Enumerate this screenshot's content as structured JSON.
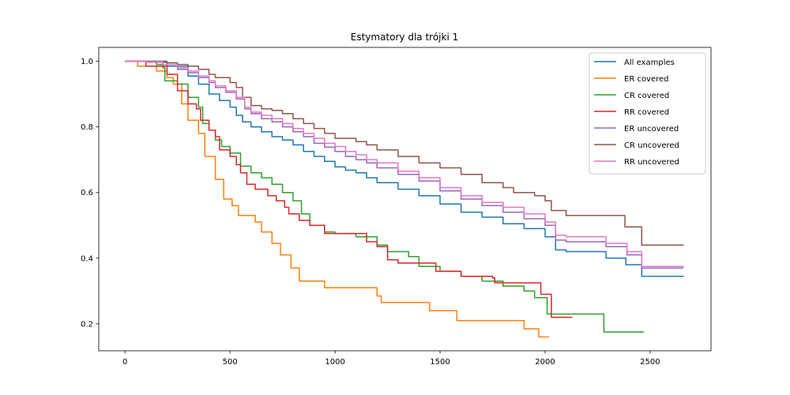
{
  "chart_data": {
    "type": "line",
    "title": "Estymatory dla trójki 1",
    "xlabel": "",
    "ylabel": "",
    "xlim": [
      -125,
      2790
    ],
    "ylim": [
      0.118,
      1.042
    ],
    "xticks": [
      0,
      500,
      1000,
      1500,
      2000,
      2500
    ],
    "xtick_labels": [
      "0",
      "500",
      "1000",
      "1500",
      "2000",
      "2500"
    ],
    "yticks": [
      0.2,
      0.4,
      0.6,
      0.8,
      1.0
    ],
    "ytick_labels": [
      "0.2",
      "0.4",
      "0.6",
      "0.8",
      "1.0"
    ],
    "grid": false,
    "legend_position": "top-right",
    "series": [
      {
        "name": "All examples",
        "color": "#1f77b4",
        "points": [
          [
            0,
            1.0
          ],
          [
            100,
            0.997
          ],
          [
            200,
            0.985
          ],
          [
            300,
            0.955
          ],
          [
            350,
            0.93
          ],
          [
            400,
            0.9
          ],
          [
            450,
            0.88
          ],
          [
            500,
            0.86
          ],
          [
            530,
            0.835
          ],
          [
            560,
            0.815
          ],
          [
            600,
            0.8
          ],
          [
            650,
            0.785
          ],
          [
            700,
            0.77
          ],
          [
            750,
            0.76
          ],
          [
            800,
            0.745
          ],
          [
            850,
            0.725
          ],
          [
            900,
            0.71
          ],
          [
            950,
            0.695
          ],
          [
            1000,
            0.678
          ],
          [
            1050,
            0.668
          ],
          [
            1100,
            0.66
          ],
          [
            1150,
            0.645
          ],
          [
            1200,
            0.63
          ],
          [
            1300,
            0.61
          ],
          [
            1400,
            0.59
          ],
          [
            1500,
            0.565
          ],
          [
            1600,
            0.54
          ],
          [
            1700,
            0.525
          ],
          [
            1800,
            0.505
          ],
          [
            1900,
            0.49
          ],
          [
            2000,
            0.465
          ],
          [
            2050,
            0.425
          ],
          [
            2100,
            0.42
          ],
          [
            2280,
            0.42
          ],
          [
            2290,
            0.4
          ],
          [
            2380,
            0.4
          ],
          [
            2385,
            0.38
          ],
          [
            2450,
            0.38
          ],
          [
            2460,
            0.345
          ],
          [
            2660,
            0.345
          ]
        ]
      },
      {
        "name": "ER covered",
        "color": "#ff7f0e",
        "points": [
          [
            0,
            1.0
          ],
          [
            60,
            0.985
          ],
          [
            150,
            0.97
          ],
          [
            200,
            0.95
          ],
          [
            230,
            0.93
          ],
          [
            270,
            0.87
          ],
          [
            300,
            0.82
          ],
          [
            350,
            0.78
          ],
          [
            380,
            0.71
          ],
          [
            430,
            0.64
          ],
          [
            470,
            0.58
          ],
          [
            510,
            0.56
          ],
          [
            540,
            0.53
          ],
          [
            620,
            0.51
          ],
          [
            650,
            0.48
          ],
          [
            700,
            0.445
          ],
          [
            740,
            0.41
          ],
          [
            790,
            0.37
          ],
          [
            830,
            0.33
          ],
          [
            950,
            0.31
          ],
          [
            1170,
            0.31
          ],
          [
            1200,
            0.285
          ],
          [
            1220,
            0.265
          ],
          [
            1350,
            0.265
          ],
          [
            1450,
            0.24
          ],
          [
            1580,
            0.21
          ],
          [
            1850,
            0.21
          ],
          [
            1900,
            0.185
          ],
          [
            1970,
            0.16
          ],
          [
            2020,
            0.16
          ]
        ]
      },
      {
        "name": "CR covered",
        "color": "#2ca02c",
        "points": [
          [
            0,
            1.0
          ],
          [
            150,
            0.99
          ],
          [
            180,
            0.98
          ],
          [
            190,
            0.94
          ],
          [
            250,
            0.93
          ],
          [
            300,
            0.89
          ],
          [
            350,
            0.86
          ],
          [
            370,
            0.81
          ],
          [
            400,
            0.79
          ],
          [
            430,
            0.76
          ],
          [
            460,
            0.74
          ],
          [
            500,
            0.72
          ],
          [
            550,
            0.68
          ],
          [
            600,
            0.66
          ],
          [
            650,
            0.645
          ],
          [
            700,
            0.625
          ],
          [
            750,
            0.6
          ],
          [
            800,
            0.575
          ],
          [
            840,
            0.535
          ],
          [
            880,
            0.5
          ],
          [
            950,
            0.48
          ],
          [
            1000,
            0.475
          ],
          [
            1100,
            0.465
          ],
          [
            1200,
            0.44
          ],
          [
            1250,
            0.42
          ],
          [
            1350,
            0.405
          ],
          [
            1400,
            0.375
          ],
          [
            1500,
            0.36
          ],
          [
            1600,
            0.345
          ],
          [
            1700,
            0.33
          ],
          [
            1800,
            0.315
          ],
          [
            1900,
            0.3
          ],
          [
            1950,
            0.28
          ],
          [
            2010,
            0.23
          ],
          [
            2170,
            0.23
          ],
          [
            2280,
            0.175
          ],
          [
            2470,
            0.175
          ]
        ]
      },
      {
        "name": "RR covered",
        "color": "#d62728",
        "points": [
          [
            0,
            1.0
          ],
          [
            100,
            0.985
          ],
          [
            200,
            0.96
          ],
          [
            250,
            0.91
          ],
          [
            300,
            0.87
          ],
          [
            340,
            0.855
          ],
          [
            360,
            0.82
          ],
          [
            400,
            0.79
          ],
          [
            430,
            0.77
          ],
          [
            450,
            0.73
          ],
          [
            500,
            0.71
          ],
          [
            530,
            0.685
          ],
          [
            550,
            0.66
          ],
          [
            580,
            0.625
          ],
          [
            620,
            0.61
          ],
          [
            680,
            0.59
          ],
          [
            720,
            0.575
          ],
          [
            760,
            0.555
          ],
          [
            780,
            0.535
          ],
          [
            830,
            0.515
          ],
          [
            880,
            0.5
          ],
          [
            950,
            0.475
          ],
          [
            1090,
            0.475
          ],
          [
            1150,
            0.45
          ],
          [
            1200,
            0.435
          ],
          [
            1250,
            0.395
          ],
          [
            1300,
            0.385
          ],
          [
            1450,
            0.385
          ],
          [
            1480,
            0.36
          ],
          [
            1600,
            0.345
          ],
          [
            1750,
            0.34
          ],
          [
            1760,
            0.325
          ],
          [
            1960,
            0.325
          ],
          [
            1980,
            0.29
          ],
          [
            2020,
            0.29
          ],
          [
            2030,
            0.22
          ],
          [
            2130,
            0.22
          ]
        ]
      },
      {
        "name": "ER uncovered",
        "color": "#9467bd",
        "points": [
          [
            0,
            1.0
          ],
          [
            100,
            0.997
          ],
          [
            180,
            0.99
          ],
          [
            250,
            0.975
          ],
          [
            300,
            0.965
          ],
          [
            350,
            0.95
          ],
          [
            400,
            0.935
          ],
          [
            430,
            0.92
          ],
          [
            480,
            0.905
          ],
          [
            530,
            0.885
          ],
          [
            570,
            0.855
          ],
          [
            600,
            0.84
          ],
          [
            650,
            0.825
          ],
          [
            700,
            0.815
          ],
          [
            750,
            0.8
          ],
          [
            800,
            0.785
          ],
          [
            850,
            0.77
          ],
          [
            900,
            0.75
          ],
          [
            950,
            0.738
          ],
          [
            1000,
            0.725
          ],
          [
            1050,
            0.71
          ],
          [
            1100,
            0.7
          ],
          [
            1150,
            0.69
          ],
          [
            1200,
            0.675
          ],
          [
            1300,
            0.655
          ],
          [
            1400,
            0.635
          ],
          [
            1500,
            0.605
          ],
          [
            1600,
            0.58
          ],
          [
            1700,
            0.56
          ],
          [
            1800,
            0.54
          ],
          [
            1900,
            0.52
          ],
          [
            2000,
            0.5
          ],
          [
            2050,
            0.455
          ],
          [
            2100,
            0.45
          ],
          [
            2280,
            0.45
          ],
          [
            2290,
            0.435
          ],
          [
            2380,
            0.435
          ],
          [
            2390,
            0.41
          ],
          [
            2450,
            0.41
          ],
          [
            2460,
            0.37
          ],
          [
            2660,
            0.37
          ]
        ]
      },
      {
        "name": "CR uncovered",
        "color": "#8c564b",
        "points": [
          [
            0,
            1.0
          ],
          [
            170,
            1.0
          ],
          [
            200,
            0.995
          ],
          [
            250,
            0.99
          ],
          [
            300,
            0.985
          ],
          [
            350,
            0.975
          ],
          [
            400,
            0.96
          ],
          [
            430,
            0.95
          ],
          [
            500,
            0.935
          ],
          [
            530,
            0.92
          ],
          [
            560,
            0.89
          ],
          [
            600,
            0.865
          ],
          [
            650,
            0.855
          ],
          [
            700,
            0.85
          ],
          [
            750,
            0.84
          ],
          [
            800,
            0.825
          ],
          [
            850,
            0.81
          ],
          [
            900,
            0.795
          ],
          [
            950,
            0.78
          ],
          [
            1000,
            0.765
          ],
          [
            1100,
            0.755
          ],
          [
            1150,
            0.745
          ],
          [
            1200,
            0.73
          ],
          [
            1300,
            0.71
          ],
          [
            1400,
            0.69
          ],
          [
            1500,
            0.675
          ],
          [
            1600,
            0.655
          ],
          [
            1700,
            0.63
          ],
          [
            1800,
            0.615
          ],
          [
            1850,
            0.6
          ],
          [
            1950,
            0.59
          ],
          [
            2000,
            0.575
          ],
          [
            2030,
            0.545
          ],
          [
            2100,
            0.53
          ],
          [
            2370,
            0.53
          ],
          [
            2380,
            0.495
          ],
          [
            2450,
            0.495
          ],
          [
            2460,
            0.44
          ],
          [
            2660,
            0.44
          ]
        ]
      },
      {
        "name": "RR uncovered",
        "color": "#e377c2",
        "points": [
          [
            0,
            1.0
          ],
          [
            100,
            0.998
          ],
          [
            180,
            0.99
          ],
          [
            250,
            0.98
          ],
          [
            300,
            0.97
          ],
          [
            350,
            0.955
          ],
          [
            400,
            0.94
          ],
          [
            430,
            0.925
          ],
          [
            480,
            0.91
          ],
          [
            530,
            0.89
          ],
          [
            570,
            0.86
          ],
          [
            600,
            0.845
          ],
          [
            650,
            0.835
          ],
          [
            700,
            0.825
          ],
          [
            750,
            0.81
          ],
          [
            800,
            0.795
          ],
          [
            850,
            0.78
          ],
          [
            900,
            0.765
          ],
          [
            950,
            0.75
          ],
          [
            1000,
            0.74
          ],
          [
            1050,
            0.725
          ],
          [
            1100,
            0.715
          ],
          [
            1150,
            0.7
          ],
          [
            1200,
            0.69
          ],
          [
            1300,
            0.665
          ],
          [
            1400,
            0.645
          ],
          [
            1500,
            0.615
          ],
          [
            1600,
            0.59
          ],
          [
            1700,
            0.57
          ],
          [
            1800,
            0.555
          ],
          [
            1900,
            0.535
          ],
          [
            2000,
            0.51
          ],
          [
            2050,
            0.47
          ],
          [
            2100,
            0.465
          ],
          [
            2280,
            0.465
          ],
          [
            2290,
            0.445
          ],
          [
            2380,
            0.445
          ],
          [
            2390,
            0.42
          ],
          [
            2450,
            0.42
          ],
          [
            2460,
            0.375
          ],
          [
            2660,
            0.375
          ]
        ]
      }
    ]
  }
}
